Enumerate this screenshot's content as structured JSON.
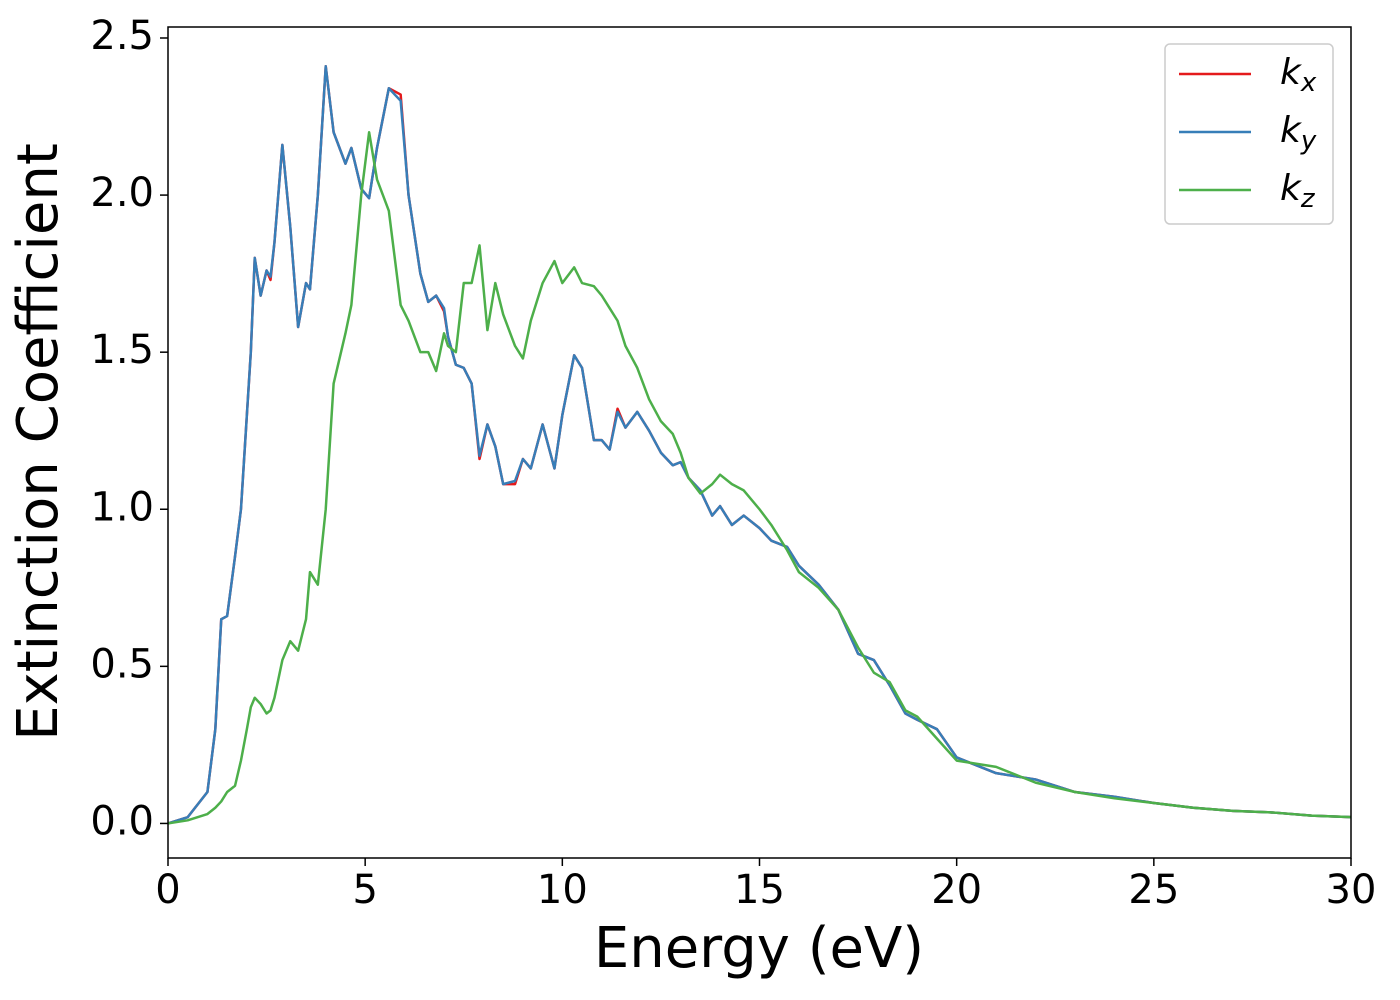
{
  "chart_data": {
    "type": "line",
    "xlabel": "Energy (eV)",
    "ylabel": "Extinction Coefficient",
    "x": [
      0,
      0.5,
      1.0,
      1.2,
      1.35,
      1.5,
      1.7,
      1.85,
      2.0,
      2.1,
      2.2,
      2.35,
      2.5,
      2.6,
      2.7,
      2.9,
      3.1,
      3.3,
      3.5,
      3.6,
      3.8,
      4.0,
      4.2,
      4.5,
      4.65,
      4.9,
      5.1,
      5.3,
      5.6,
      5.9,
      6.1,
      6.4,
      6.6,
      6.8,
      7.0,
      7.1,
      7.3,
      7.5,
      7.7,
      7.9,
      8.1,
      8.3,
      8.5,
      8.8,
      9.0,
      9.2,
      9.5,
      9.8,
      10.0,
      10.3,
      10.5,
      10.8,
      11.0,
      11.2,
      11.4,
      11.6,
      11.9,
      12.2,
      12.5,
      12.8,
      13.0,
      13.2,
      13.5,
      13.8,
      14.0,
      14.3,
      14.6,
      15.0,
      15.3,
      15.7,
      16.0,
      16.5,
      17.0,
      17.5,
      17.9,
      18.3,
      18.7,
      19.0,
      19.5,
      20.0,
      21,
      22,
      23,
      24,
      25,
      26,
      27,
      28,
      29,
      30
    ],
    "series": [
      {
        "name": "kx",
        "color": "#e41a1c",
        "values": [
          0.0,
          0.02,
          0.1,
          0.3,
          0.65,
          0.66,
          0.85,
          1.0,
          1.3,
          1.5,
          1.8,
          1.68,
          1.76,
          1.73,
          1.85,
          2.16,
          1.9,
          1.58,
          1.72,
          1.7,
          2.0,
          2.41,
          2.2,
          2.1,
          2.15,
          2.02,
          1.99,
          2.15,
          2.34,
          2.32,
          2.0,
          1.75,
          1.66,
          1.68,
          1.63,
          1.55,
          1.46,
          1.45,
          1.4,
          1.16,
          1.27,
          1.2,
          1.08,
          1.08,
          1.16,
          1.13,
          1.27,
          1.13,
          1.3,
          1.49,
          1.45,
          1.22,
          1.22,
          1.19,
          1.32,
          1.26,
          1.31,
          1.25,
          1.18,
          1.14,
          1.15,
          1.1,
          1.06,
          0.98,
          1.01,
          0.95,
          0.98,
          0.94,
          0.9,
          0.88,
          0.82,
          0.76,
          0.68,
          0.54,
          0.52,
          0.44,
          0.35,
          0.33,
          0.3,
          0.21,
          0.16,
          0.14,
          0.1,
          0.085,
          0.065,
          0.05,
          0.04,
          0.035,
          0.025,
          0.02
        ]
      },
      {
        "name": "ky",
        "color": "#377eb8",
        "values": [
          0.0,
          0.02,
          0.1,
          0.3,
          0.65,
          0.66,
          0.85,
          1.0,
          1.3,
          1.5,
          1.8,
          1.68,
          1.76,
          1.74,
          1.85,
          2.16,
          1.9,
          1.58,
          1.72,
          1.7,
          2.0,
          2.41,
          2.2,
          2.1,
          2.15,
          2.02,
          1.99,
          2.15,
          2.34,
          2.3,
          2.0,
          1.75,
          1.66,
          1.68,
          1.64,
          1.55,
          1.46,
          1.45,
          1.4,
          1.17,
          1.27,
          1.2,
          1.08,
          1.09,
          1.16,
          1.13,
          1.27,
          1.13,
          1.3,
          1.49,
          1.45,
          1.22,
          1.22,
          1.19,
          1.31,
          1.26,
          1.31,
          1.25,
          1.18,
          1.14,
          1.15,
          1.1,
          1.06,
          0.98,
          1.01,
          0.95,
          0.98,
          0.94,
          0.9,
          0.88,
          0.82,
          0.76,
          0.68,
          0.54,
          0.52,
          0.44,
          0.35,
          0.33,
          0.3,
          0.21,
          0.16,
          0.14,
          0.1,
          0.085,
          0.065,
          0.05,
          0.04,
          0.035,
          0.025,
          0.02
        ]
      },
      {
        "name": "kz",
        "color": "#4daf4a",
        "values": [
          0.0,
          0.01,
          0.03,
          0.05,
          0.07,
          0.1,
          0.12,
          0.2,
          0.3,
          0.37,
          0.4,
          0.38,
          0.35,
          0.36,
          0.4,
          0.52,
          0.58,
          0.55,
          0.65,
          0.8,
          0.76,
          1.0,
          1.4,
          1.56,
          1.65,
          2.0,
          2.2,
          2.05,
          1.95,
          1.65,
          1.6,
          1.5,
          1.5,
          1.44,
          1.56,
          1.52,
          1.5,
          1.72,
          1.72,
          1.84,
          1.57,
          1.72,
          1.62,
          1.52,
          1.48,
          1.6,
          1.72,
          1.79,
          1.72,
          1.77,
          1.72,
          1.71,
          1.68,
          1.64,
          1.6,
          1.52,
          1.45,
          1.35,
          1.28,
          1.24,
          1.18,
          1.1,
          1.05,
          1.08,
          1.11,
          1.08,
          1.06,
          1.0,
          0.95,
          0.87,
          0.8,
          0.75,
          0.68,
          0.56,
          0.48,
          0.45,
          0.36,
          0.34,
          0.27,
          0.2,
          0.18,
          0.13,
          0.1,
          0.08,
          0.065,
          0.05,
          0.04,
          0.035,
          0.025,
          0.02
        ]
      }
    ],
    "xlim": [
      0,
      30
    ],
    "xticks": [
      0,
      5,
      10,
      15,
      20,
      25,
      30
    ],
    "ylim": [
      -0.11,
      2.535
    ],
    "yticks": [
      {
        "value": 0,
        "label": "0.0"
      },
      0.5,
      {
        "value": 1,
        "label": "1.0"
      },
      1.5,
      {
        "value": 2,
        "label": "2.0"
      },
      2.5
    ],
    "legend": "upper right",
    "grid": false
  }
}
